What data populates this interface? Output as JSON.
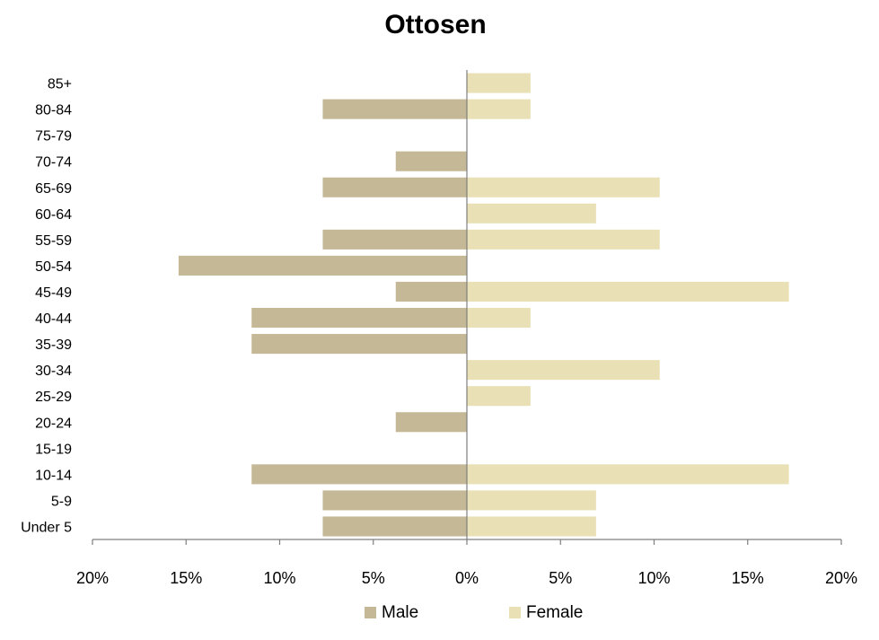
{
  "chart_data": {
    "type": "bar",
    "orientation": "horizontal",
    "layout": "population-pyramid",
    "title": "Ottosen",
    "xlabel": "",
    "ylabel": "",
    "categories": [
      "Under 5",
      "5-9",
      "10-14",
      "15-19",
      "20-24",
      "25-29",
      "30-34",
      "35-39",
      "40-44",
      "45-49",
      "50-54",
      "55-59",
      "60-64",
      "65-69",
      "70-74",
      "75-79",
      "80-84",
      "85+"
    ],
    "series": [
      {
        "name": "Male",
        "color": "#c4b897",
        "side": "left",
        "values": [
          7.7,
          7.7,
          11.5,
          0,
          3.8,
          0,
          0,
          11.5,
          11.5,
          3.8,
          15.4,
          7.7,
          0,
          7.7,
          3.8,
          0,
          7.7,
          0
        ]
      },
      {
        "name": "Female",
        "color": "#e9e1b5",
        "side": "right",
        "values": [
          6.9,
          6.9,
          17.2,
          0,
          0,
          3.4,
          10.3,
          0,
          3.4,
          17.2,
          0,
          10.3,
          6.9,
          10.3,
          0,
          0,
          3.4,
          3.4
        ]
      }
    ],
    "xlim": [
      -20,
      20
    ],
    "x_ticks": [
      -20,
      -15,
      -10,
      -5,
      0,
      5,
      10,
      15,
      20
    ],
    "x_tick_labels": [
      "20%",
      "15%",
      "10%",
      "5%",
      "0%",
      "5%",
      "10%",
      "15%",
      "20%"
    ],
    "grid": false,
    "legend_position": "bottom"
  }
}
